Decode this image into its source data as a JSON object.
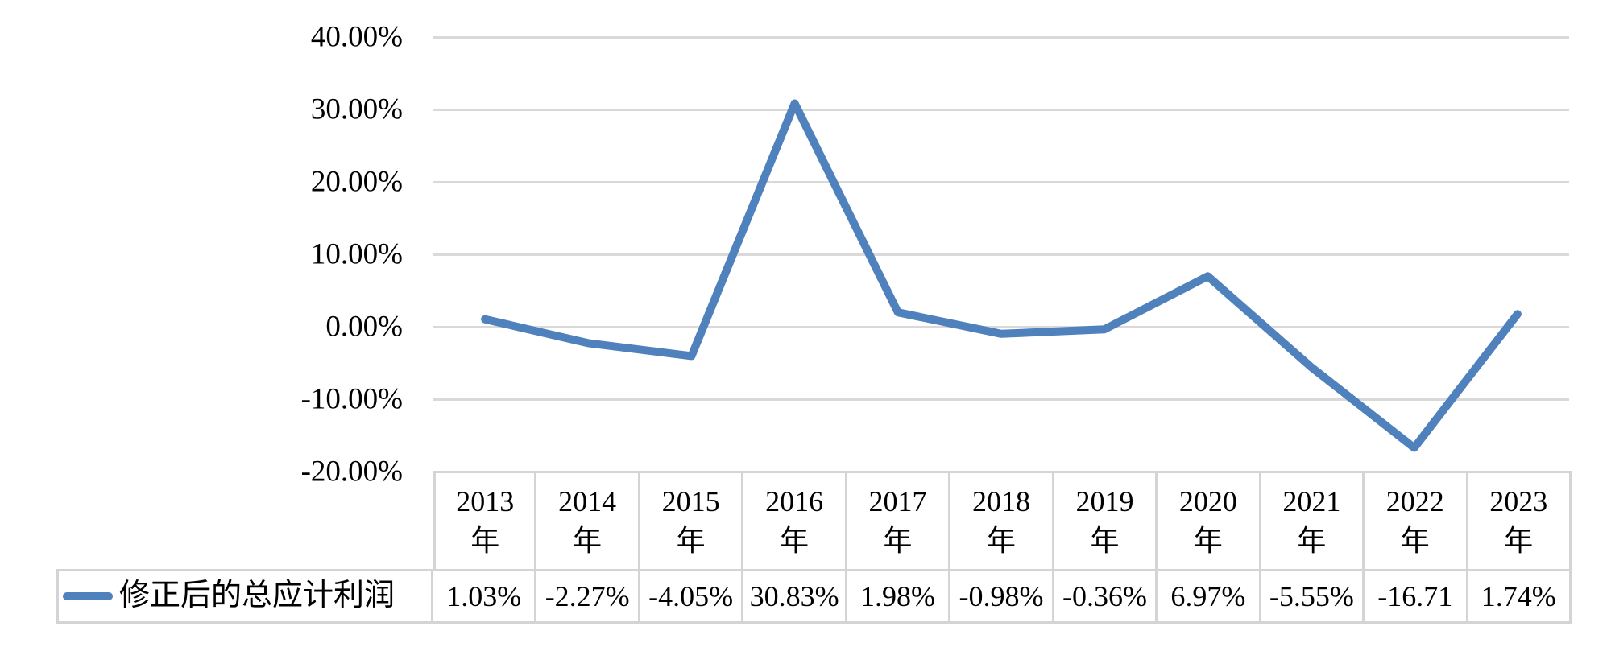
{
  "chart_data": {
    "type": "line",
    "title": "",
    "xlabel": "",
    "ylabel": "",
    "categories": [
      "2013年",
      "2014年",
      "2015年",
      "2016年",
      "2017年",
      "2018年",
      "2019年",
      "2020年",
      "2021年",
      "2022年",
      "2023年"
    ],
    "series": [
      {
        "name": "修正后的总应计利润",
        "values": [
          1.03,
          -2.27,
          -4.05,
          30.83,
          1.98,
          -0.98,
          -0.36,
          6.97,
          -5.55,
          -16.71,
          1.74
        ]
      }
    ],
    "ylim": [
      -20,
      40
    ],
    "ytick_step": 10,
    "yticks": [
      "40.00%",
      "30.00%",
      "20.00%",
      "10.00%",
      "0.00%",
      "-10.00%",
      "-20.00%"
    ],
    "grid": "horizontal-only",
    "legend_position": "data-table-left"
  },
  "table": {
    "legend_label": "修正后的总应计利润",
    "year_numbers": [
      "2013",
      "2014",
      "2015",
      "2016",
      "2017",
      "2018",
      "2019",
      "2020",
      "2021",
      "2022",
      "2023"
    ],
    "year_suffix": "年",
    "cell_values": [
      "1.03%",
      "-2.27%",
      "-4.05%",
      "30.83%",
      "1.98%",
      "-0.98%",
      "-0.36%",
      "6.97%",
      "-5.55%",
      "-16.71",
      "1.74%"
    ]
  },
  "colors": {
    "line": "#4F81BD",
    "gridline": "#D9D9D9",
    "table_border": "#D4D4D4",
    "text": "#000000",
    "background": "#FFFFFF"
  }
}
